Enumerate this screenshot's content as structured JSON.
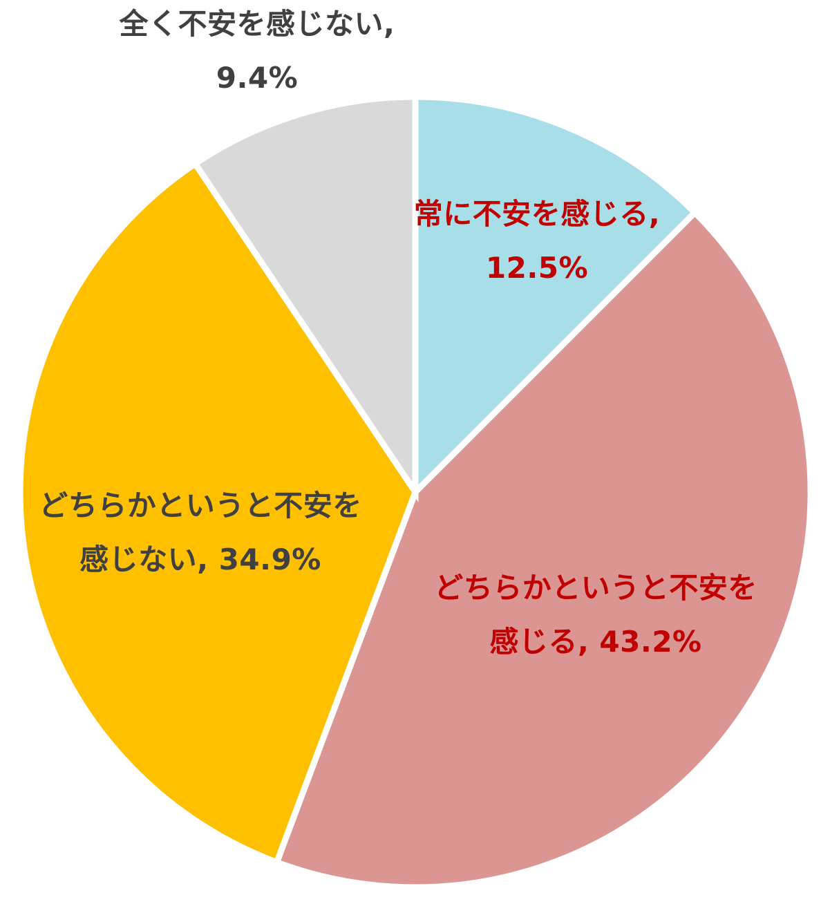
{
  "chart_data": {
    "type": "pie",
    "unit": "%",
    "start_angle_deg": 0,
    "direction": "clockwise",
    "border_color": "#FFFFFF",
    "background_color": "#FFFFFF",
    "legend": "none",
    "slices": [
      {
        "label": "常に不安を感じる",
        "value": 12.5,
        "display_text": "常に不安を感じる, 12.5%",
        "label_lines": [
          "常に不安を感じる,",
          "12.5%"
        ],
        "color": "#A8DEE8",
        "label_text_color": "#C00000",
        "label_position": "inside"
      },
      {
        "label": "どちらかというと不安を感じる",
        "value": 43.2,
        "display_text": "どちらかというと不安を感じる, 43.2%",
        "label_lines": [
          "どちらかというと不安を",
          "感じる, 43.2%"
        ],
        "color": "#DB9694",
        "label_text_color": "#C00000",
        "label_position": "inside"
      },
      {
        "label": "どちらかというと不安を感じない",
        "value": 34.9,
        "display_text": "どちらかというと不安を感じない, 34.9%",
        "label_lines": [
          "どちらかというと不安を",
          "感じない, 34.9%"
        ],
        "color": "#FFC000",
        "label_text_color": "#404040",
        "label_position": "inside"
      },
      {
        "label": "全く不安を感じない",
        "value": 9.4,
        "display_text": "全く不安を感じない, 9.4%",
        "label_lines": [
          "全く不安を感じない,",
          "9.4%"
        ],
        "color": "#D9D9D9",
        "label_text_color": "#404040",
        "label_position": "outside-top"
      }
    ]
  }
}
